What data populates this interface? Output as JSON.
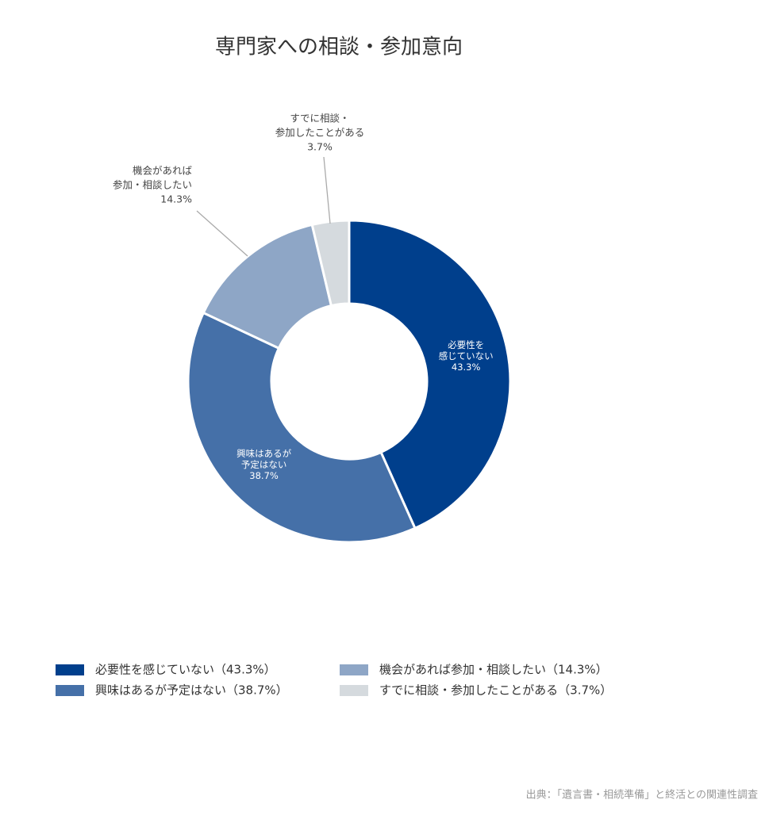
{
  "chart_data": {
    "type": "pie",
    "donut": true,
    "title": "専門家への相談・参加意向",
    "categories": [
      "必要性を感じていない（43.3%）",
      "興味はあるが予定はない（38.7%）",
      "機会があれば参加・相談したい（14.3%）",
      "すでに相談・参加したことがある（3.7%）"
    ],
    "slice_labels": [
      [
        "必要性を",
        "感じていない"
      ],
      [
        "興味はあるが",
        "予定はない"
      ],
      [
        "機会があれば",
        "参加・相談したい"
      ],
      [
        "すでに相談・",
        "参加したことがある"
      ]
    ],
    "values": [
      43.3,
      38.7,
      14.3,
      3.7
    ],
    "value_labels": [
      "43.3%",
      "38.7%",
      "14.3%",
      "3.7%"
    ],
    "colors": [
      "#003f8c",
      "#4570a8",
      "#8ea6c6",
      "#d5dade"
    ],
    "source": "出典：「遺言書・相続準備」と終活との関連性調査"
  }
}
